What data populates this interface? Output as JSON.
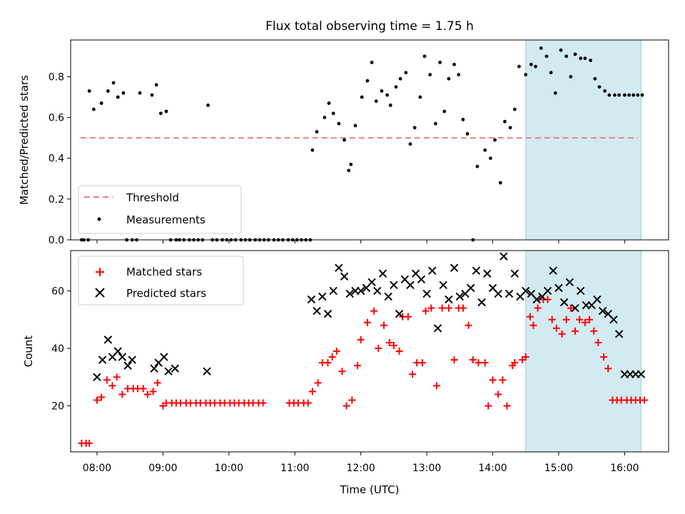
{
  "chart_data": [
    {
      "type": "scatter",
      "title": "Flux total observing time = 1.75 h",
      "xlabel": "",
      "ylabel": "Matched/Predicted stars",
      "xlim": [
        "07:36",
        "16:40"
      ],
      "ylim": [
        0,
        0.98
      ],
      "yticks": [
        0.0,
        0.2,
        0.4,
        0.6,
        0.8
      ],
      "ytick_labels": [
        "0.0",
        "0.2",
        "0.4",
        "0.6",
        "0.8"
      ],
      "highlight_span": [
        "14:30",
        "16:15"
      ],
      "highlight_color": "#add8e6",
      "threshold": {
        "name": "Threshold",
        "value": 0.5,
        "x_range": [
          "07:45",
          "16:12"
        ],
        "color": "#f08080",
        "style": "dashed"
      },
      "legend_position": "lower-left",
      "series": [
        {
          "name": "Measurements",
          "color": "#000000",
          "marker": "dot",
          "x": [
            "07:46",
            "07:48",
            "07:52",
            "07:53",
            "07:57",
            "08:04",
            "08:10",
            "08:15",
            "08:19",
            "08:24",
            "08:27",
            "08:32",
            "08:36",
            "08:39",
            "08:50",
            "08:54",
            "08:58",
            "09:03",
            "09:07",
            "09:12",
            "09:15",
            "09:19",
            "09:24",
            "09:28",
            "09:32",
            "09:36",
            "09:41",
            "09:45",
            "09:49",
            "09:54",
            "09:58",
            "10:02",
            "10:06",
            "10:11",
            "10:15",
            "10:19",
            "10:24",
            "10:28",
            "10:32",
            "10:36",
            "10:41",
            "10:45",
            "10:49",
            "10:54",
            "10:58",
            "11:02",
            "11:06",
            "11:10",
            "11:14",
            "11:16",
            "11:20",
            "11:27",
            "11:31",
            "11:35",
            "11:40",
            "11:45",
            "11:49",
            "11:51",
            "11:55",
            "12:01",
            "12:06",
            "12:10",
            "12:14",
            "12:19",
            "12:24",
            "12:27",
            "12:32",
            "12:36",
            "12:41",
            "12:45",
            "12:49",
            "12:54",
            "12:58",
            "13:03",
            "13:08",
            "13:12",
            "13:16",
            "13:20",
            "13:25",
            "13:29",
            "13:33",
            "13:37",
            "13:42",
            "13:46",
            "13:53",
            "13:58",
            "14:02",
            "14:07",
            "14:11",
            "14:16",
            "14:20",
            "14:24",
            "14:30",
            "14:35",
            "14:39",
            "14:44",
            "14:49",
            "14:53",
            "14:57",
            "15:02",
            "15:07",
            "15:11",
            "15:15",
            "15:20",
            "15:24",
            "15:29",
            "15:33",
            "15:37",
            "15:42",
            "15:46",
            "15:51",
            "15:55",
            "16:00",
            "16:04",
            "16:08",
            "16:12",
            "16:16"
          ],
          "y": [
            0.0,
            0.0,
            0.0,
            0.73,
            0.64,
            0.67,
            0.73,
            0.77,
            0.7,
            0.72,
            0.0,
            0.0,
            0.0,
            0.72,
            0.71,
            0.76,
            0.62,
            0.63,
            0.0,
            0.0,
            0.0,
            0.0,
            0.0,
            0.0,
            0.0,
            0.0,
            0.66,
            0.0,
            0.0,
            0.0,
            0.0,
            0.0,
            0.0,
            0.0,
            0.0,
            0.0,
            0.0,
            0.0,
            0.0,
            0.0,
            0.0,
            0.0,
            0.0,
            0.0,
            0.0,
            0.0,
            0.0,
            0.0,
            0.0,
            0.44,
            0.53,
            0.6,
            0.67,
            0.62,
            0.57,
            0.49,
            0.34,
            0.37,
            0.56,
            0.7,
            0.78,
            0.87,
            0.68,
            0.73,
            0.71,
            0.66,
            0.75,
            0.79,
            0.82,
            0.47,
            0.55,
            0.7,
            0.9,
            0.81,
            0.57,
            0.87,
            0.63,
            0.79,
            0.86,
            0.81,
            0.59,
            0.52,
            0.0,
            0.36,
            0.44,
            0.4,
            0.49,
            0.28,
            0.58,
            0.55,
            0.64,
            0.85,
            0.81,
            0.86,
            0.85,
            0.94,
            0.9,
            0.82,
            0.72,
            0.93,
            0.9,
            0.8,
            0.91,
            0.89,
            0.89,
            0.88,
            0.79,
            0.75,
            0.73,
            0.71,
            0.71,
            0.71,
            0.71,
            0.71,
            0.71,
            0.71,
            0.71
          ]
        }
      ]
    },
    {
      "type": "scatter",
      "title": "",
      "xlabel": "Time (UTC)",
      "ylabel": "Count",
      "xlim": [
        "07:36",
        "16:40"
      ],
      "ylim": [
        4,
        74
      ],
      "yticks": [
        20,
        40,
        60
      ],
      "ytick_labels": [
        "20",
        "40",
        "60"
      ],
      "xticks": [
        "08:00",
        "09:00",
        "10:00",
        "11:00",
        "12:00",
        "13:00",
        "14:00",
        "15:00",
        "16:00"
      ],
      "highlight_span": [
        "14:30",
        "16:15"
      ],
      "highlight_color": "#add8e6",
      "legend_position": "upper-left",
      "series": [
        {
          "name": "Matched stars",
          "color": "#ff0000",
          "marker": "plus",
          "x": [
            "07:46",
            "07:50",
            "07:53",
            "08:00",
            "08:04",
            "08:09",
            "08:14",
            "08:18",
            "08:23",
            "08:28",
            "08:33",
            "08:37",
            "08:42",
            "08:46",
            "08:51",
            "08:55",
            "09:00",
            "09:03",
            "09:08",
            "09:12",
            "09:16",
            "09:21",
            "09:25",
            "09:30",
            "09:34",
            "09:39",
            "09:43",
            "09:47",
            "09:52",
            "09:56",
            "10:01",
            "10:05",
            "10:09",
            "10:14",
            "10:18",
            "10:22",
            "10:27",
            "10:31",
            "10:55",
            "10:59",
            "11:03",
            "11:08",
            "11:12",
            "11:16",
            "11:21",
            "11:25",
            "11:30",
            "11:34",
            "11:38",
            "11:43",
            "11:47",
            "11:52",
            "11:57",
            "12:00",
            "12:06",
            "12:12",
            "12:16",
            "12:21",
            "12:26",
            "12:30",
            "12:35",
            "12:38",
            "12:43",
            "12:47",
            "12:51",
            "12:56",
            "12:59",
            "13:04",
            "13:09",
            "13:14",
            "13:20",
            "13:25",
            "13:29",
            "13:33",
            "13:38",
            "13:42",
            "13:47",
            "13:53",
            "13:56",
            "14:00",
            "14:05",
            "14:09",
            "14:13",
            "14:18",
            "14:20",
            "14:27",
            "14:30",
            "14:34",
            "14:37",
            "14:41",
            "14:46",
            "14:50",
            "14:54",
            "14:58",
            "15:03",
            "15:07",
            "15:11",
            "15:15",
            "15:19",
            "15:24",
            "15:28",
            "15:32",
            "15:36",
            "15:41",
            "15:45",
            "15:49",
            "15:53",
            "15:57",
            "16:02",
            "16:06",
            "16:10",
            "16:14",
            "16:18"
          ],
          "y": [
            7,
            7,
            7,
            22,
            23,
            29,
            27,
            30,
            24,
            26,
            26,
            26,
            26,
            24,
            25,
            28,
            20,
            21,
            21,
            21,
            21,
            21,
            21,
            21,
            21,
            21,
            21,
            21,
            21,
            21,
            21,
            21,
            21,
            21,
            21,
            21,
            21,
            21,
            21,
            21,
            21,
            21,
            21,
            25,
            28,
            35,
            35,
            37,
            39,
            32,
            20,
            22,
            34,
            43,
            49,
            53,
            40,
            48,
            42,
            41,
            39,
            51,
            51,
            31,
            35,
            35,
            53,
            54,
            27,
            54,
            54,
            36,
            54,
            54,
            48,
            36,
            35,
            35,
            20,
            29,
            24,
            29,
            20,
            34,
            35,
            36,
            37,
            51,
            48,
            54,
            57,
            57,
            50,
            47,
            45,
            50,
            54,
            46,
            50,
            49,
            50,
            46,
            42,
            37,
            33,
            22,
            22,
            22,
            22,
            22,
            22,
            22,
            22
          ]
        },
        {
          "name": "Predicted stars",
          "color": "#000000",
          "marker": "x",
          "x": [
            "08:00",
            "08:05",
            "08:10",
            "08:14",
            "08:19",
            "08:23",
            "08:28",
            "08:32",
            "08:52",
            "08:56",
            "09:01",
            "09:05",
            "09:11",
            "09:40",
            "11:15",
            "11:20",
            "11:25",
            "11:30",
            "11:35",
            "11:40",
            "11:45",
            "11:50",
            "11:55",
            "12:00",
            "12:05",
            "12:10",
            "12:15",
            "12:20",
            "12:25",
            "12:30",
            "12:35",
            "12:40",
            "12:45",
            "12:50",
            "12:55",
            "13:00",
            "13:05",
            "13:10",
            "13:15",
            "13:20",
            "13:25",
            "13:30",
            "13:35",
            "13:40",
            "13:45",
            "13:50",
            "13:55",
            "14:00",
            "14:05",
            "14:10",
            "14:15",
            "14:20",
            "14:25",
            "14:30",
            "14:35",
            "14:40",
            "14:45",
            "14:50",
            "14:55",
            "15:00",
            "15:05",
            "15:10",
            "15:15",
            "15:20",
            "15:25",
            "15:30",
            "15:35",
            "15:40",
            "15:45",
            "15:50",
            "15:55",
            "16:00",
            "16:05",
            "16:10",
            "16:15"
          ],
          "y": [
            30,
            36,
            43,
            37,
            39,
            37,
            34,
            36,
            33,
            35,
            37,
            32,
            33,
            32,
            57,
            53,
            58,
            52,
            60,
            68,
            65,
            59,
            60,
            60,
            61,
            63,
            60,
            66,
            58,
            62,
            52,
            64,
            62,
            66,
            64,
            59,
            67,
            47,
            62,
            57,
            68,
            58,
            59,
            61,
            67,
            56,
            66,
            61,
            59,
            72,
            59,
            66,
            58,
            60,
            59,
            57,
            58,
            60,
            67,
            61,
            56,
            63,
            54,
            60,
            55,
            55,
            57,
            53,
            52,
            50,
            45,
            31,
            31,
            31,
            31
          ]
        }
      ]
    }
  ]
}
